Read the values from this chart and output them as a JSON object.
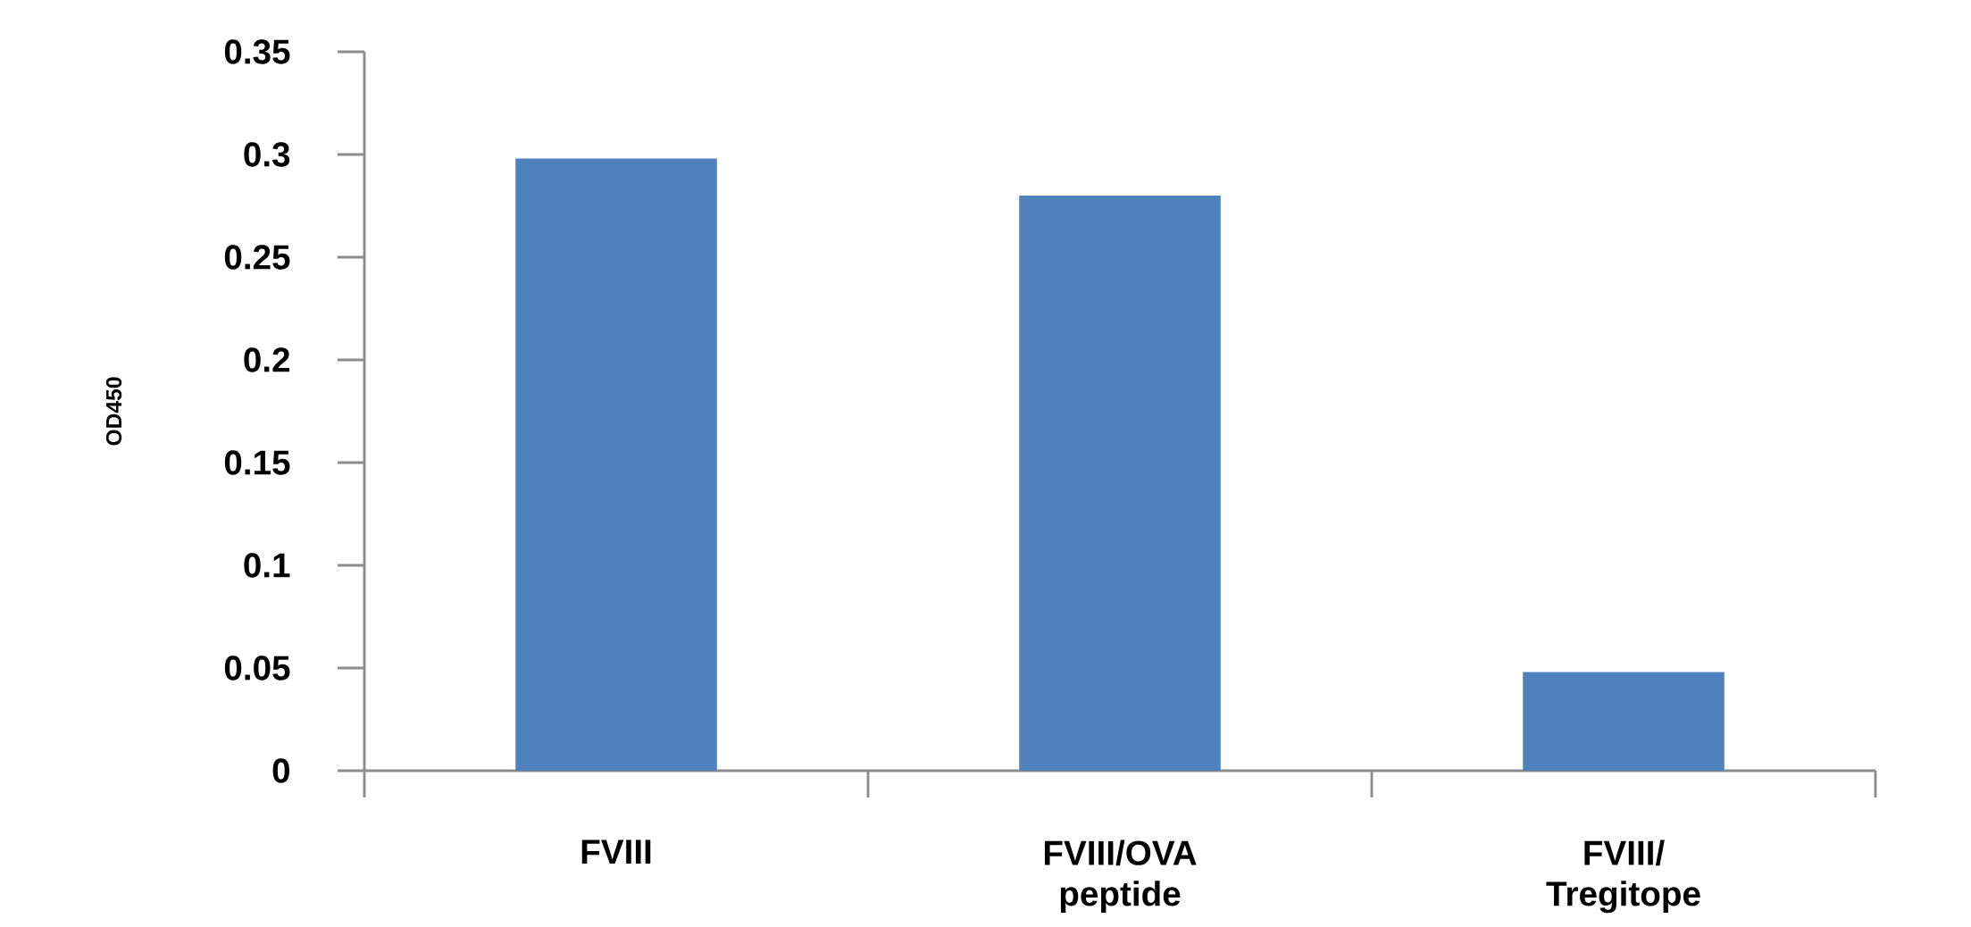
{
  "chart_data": {
    "type": "bar",
    "ylabel": "OD450",
    "categories": [
      "FVIII",
      "FVIII/OVA peptide",
      "FVIII/ Tregitope"
    ],
    "values": [
      0.298,
      0.28,
      0.048
    ],
    "color": "#4f81bd",
    "ylim": [
      0,
      0.35
    ],
    "yticks": [
      0,
      0.05,
      0.1,
      0.15,
      0.2,
      0.25,
      0.3,
      0.35
    ],
    "grid": false
  }
}
